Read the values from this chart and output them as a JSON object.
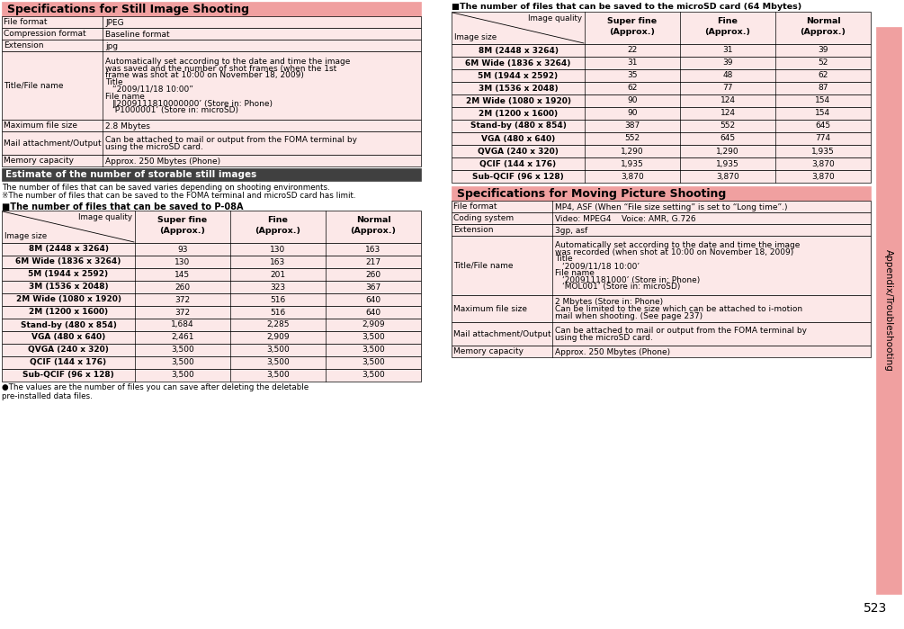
{
  "page_number": "523",
  "sidebar_text": "Appendix/Troubleshooting",
  "bg_color": "#ffffff",
  "salmon_header_color": "#f0a0a0",
  "light_pink_color": "#fce8e8",
  "dark_header_color": "#404040",
  "section1_title": "Specifications for Still Image Shooting",
  "still_specs": [
    [
      "File format",
      "JPEG"
    ],
    [
      "Compression format",
      "Baseline format"
    ],
    [
      "Extension",
      "jpg"
    ],
    [
      "Title/File name",
      "Automatically set according to the date and time the image\nwas saved and the number of shot frames (when the 1st\nframe was shot at 10:00 on November 18, 2009)\nTitle\n    “2009/11/18 10:00”\nFile name\n    ‖2009111810000000’ (Store in: Phone)\n    ‘P1000001’ (Store in: microSD)"
    ],
    [
      "Maximum file size",
      "2.8 Mbytes"
    ],
    [
      "Mail attachment/Output",
      "Can be attached to mail or output from the FOMA terminal by\nusing the microSD card."
    ],
    [
      "Memory capacity",
      "Approx. 250 Mbytes (Phone)"
    ]
  ],
  "still_row_heights": [
    13,
    13,
    13,
    76,
    13,
    26,
    13
  ],
  "section2_title": "Estimate of the number of storable still images",
  "note1": "The number of files that can be saved varies depending on shooting environments.",
  "note2": "※The number of files that can be saved to the FOMA terminal and microSD card has limit.",
  "phone_table_header": "■The number of files that can be saved to P-08A",
  "phone_table_rows": [
    [
      "8M (2448 x 3264)",
      "93",
      "130",
      "163"
    ],
    [
      "6M Wide (1836 x 3264)",
      "130",
      "163",
      "217"
    ],
    [
      "5M (1944 x 2592)",
      "145",
      "201",
      "260"
    ],
    [
      "3M (1536 x 2048)",
      "260",
      "323",
      "367"
    ],
    [
      "2M Wide (1080 x 1920)",
      "372",
      "516",
      "640"
    ],
    [
      "2M (1200 x 1600)",
      "372",
      "516",
      "640"
    ],
    [
      "Stand-by (480 x 854)",
      "1,684",
      "2,285",
      "2,909"
    ],
    [
      "VGA (480 x 640)",
      "2,461",
      "2,909",
      "3,500"
    ],
    [
      "QVGA (240 x 320)",
      "3,500",
      "3,500",
      "3,500"
    ],
    [
      "QCIF (144 x 176)",
      "3,500",
      "3,500",
      "3,500"
    ],
    [
      "Sub-QCIF (96 x 128)",
      "3,500",
      "3,500",
      "3,500"
    ]
  ],
  "phone_table_note": "●The values are the number of files you can save after deleting the deletable\npre-installed data files.",
  "sd_table_header": "■The number of files that can be saved to the microSD card (64 Mbytes)",
  "sd_table_rows": [
    [
      "8M (2448 x 3264)",
      "22",
      "31",
      "39"
    ],
    [
      "6M Wide (1836 x 3264)",
      "31",
      "39",
      "52"
    ],
    [
      "5M (1944 x 2592)",
      "35",
      "48",
      "62"
    ],
    [
      "3M (1536 x 2048)",
      "62",
      "77",
      "87"
    ],
    [
      "2M Wide (1080 x 1920)",
      "90",
      "124",
      "154"
    ],
    [
      "2M (1200 x 1600)",
      "90",
      "124",
      "154"
    ],
    [
      "Stand-by (480 x 854)",
      "387",
      "552",
      "645"
    ],
    [
      "VGA (480 x 640)",
      "552",
      "645",
      "774"
    ],
    [
      "QVGA (240 x 320)",
      "1,290",
      "1,290",
      "1,935"
    ],
    [
      "QCIF (144 x 176)",
      "1,935",
      "1,935",
      "3,870"
    ],
    [
      "Sub-QCIF (96 x 128)",
      "3,870",
      "3,870",
      "3,870"
    ]
  ],
  "section3_title": "Specifications for Moving Picture Shooting",
  "moving_specs": [
    [
      "File format",
      "MP4, ASF (When “File size setting” is set to “Long time”.)"
    ],
    [
      "Coding system",
      "Video: MPEG4    Voice: AMR, G.726"
    ],
    [
      "Extension",
      "3gp, asf"
    ],
    [
      "Title/File name",
      "Automatically set according to the date and time the image\nwas recorded (when shot at 10:00 on November 18, 2009)\nTitle\n    ‘2009/11/18 10:00’\nFile name\n    ‘200911181000’ (Store in: Phone)\n    ‘MOL001’ (Store in: microSD)"
    ],
    [
      "Maximum file size",
      "2 Mbytes (Store in: Phone)\nCan be limited to the size which can be attached to i-motion\nmail when shooting. (See page 237)"
    ],
    [
      "Mail attachment/Output",
      "Can be attached to mail or output from the FOMA terminal by\nusing the microSD card."
    ],
    [
      "Memory capacity",
      "Approx. 250 Mbytes (Phone)"
    ]
  ],
  "moving_row_heights": [
    13,
    13,
    13,
    66,
    30,
    26,
    13
  ]
}
